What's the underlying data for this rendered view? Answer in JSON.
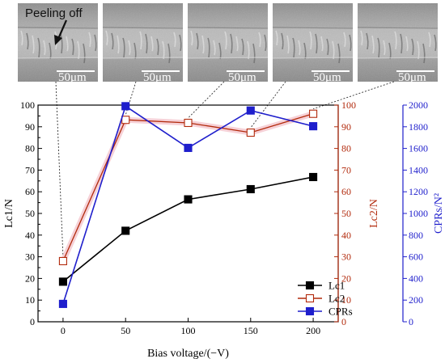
{
  "chart_data": {
    "type": "line",
    "xlabel": "Bias voltage/(−V)",
    "x": [
      0,
      50,
      100,
      150,
      200
    ],
    "xticks": [
      0,
      50,
      100,
      150,
      200
    ],
    "xlim": [
      -20,
      220
    ],
    "axes": {
      "left": {
        "label": "Lc1/N",
        "range": [
          0,
          100
        ],
        "ticks": [
          0,
          10,
          20,
          30,
          40,
          50,
          60,
          70,
          80,
          90,
          100
        ],
        "color": "#000000"
      },
      "right1": {
        "label": "Lc2/N",
        "range": [
          0,
          100
        ],
        "ticks": [
          0,
          10,
          20,
          30,
          40,
          50,
          60,
          70,
          80,
          90,
          100
        ],
        "color": "#b22a0c"
      },
      "right2": {
        "label": "CPRs/N²",
        "range": [
          0,
          2000
        ],
        "ticks": [
          0,
          200,
          400,
          600,
          800,
          1000,
          1200,
          1400,
          1600,
          1800,
          2000
        ],
        "color": "#1f1fcc"
      }
    },
    "series": [
      {
        "name": "Lc1",
        "axis": "left",
        "color": "#000000",
        "marker": "filled-square",
        "values": [
          18.5,
          42,
          56.5,
          61.2,
          66.8
        ]
      },
      {
        "name": "Lc2",
        "axis": "right1",
        "color": "#b22a0c",
        "marker": "open-square",
        "values": [
          28,
          93.2,
          91.8,
          87.3,
          96
        ]
      },
      {
        "name": "CPRs",
        "axis": "right2",
        "color": "#1f1fcc",
        "marker": "filled-square",
        "values": [
          165,
          1990,
          1605,
          1950,
          1805
        ]
      }
    ],
    "legend": {
      "placement": "bottom-right",
      "entries": [
        "Lc1",
        "Lc2",
        "CPRs"
      ]
    },
    "grid": false
  },
  "micrographs": [
    {
      "scale_label": "50μm",
      "annotation": "Peeling off",
      "bias_x": 0
    },
    {
      "scale_label": "50μm",
      "bias_x": 50
    },
    {
      "scale_label": "50μm",
      "bias_x": 100
    },
    {
      "scale_label": "50μm",
      "bias_x": 150
    },
    {
      "scale_label": "50μm",
      "bias_x": 200
    }
  ],
  "colors": {
    "lc2_shadow": "#f4c6cd"
  }
}
